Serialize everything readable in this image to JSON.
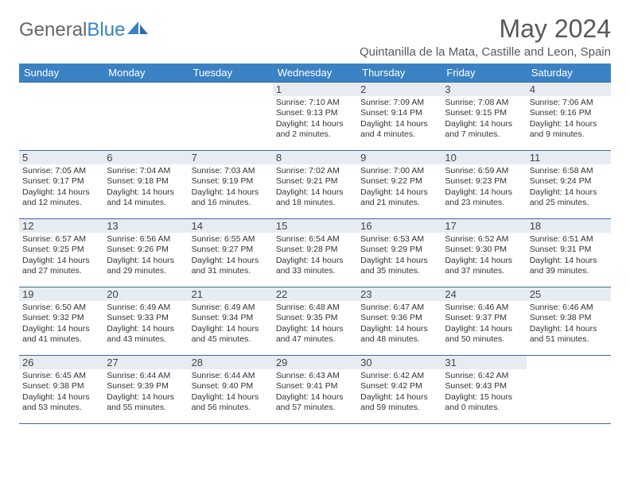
{
  "brand": {
    "part1": "General",
    "part2": "Blue"
  },
  "title": "May 2024",
  "location": "Quintanilla de la Mata, Castille and Leon, Spain",
  "colors": {
    "header_bg": "#3b82c4",
    "header_text": "#ffffff",
    "border": "#3b6a9a",
    "daynum_bg": "#e6ecf2",
    "text": "#333333",
    "title_color": "#595959"
  },
  "day_labels": [
    "Sunday",
    "Monday",
    "Tuesday",
    "Wednesday",
    "Thursday",
    "Friday",
    "Saturday"
  ],
  "weeks": [
    [
      null,
      null,
      null,
      {
        "n": "1",
        "sr": "7:10 AM",
        "ss": "9:13 PM",
        "dl": "14 hours and 2 minutes."
      },
      {
        "n": "2",
        "sr": "7:09 AM",
        "ss": "9:14 PM",
        "dl": "14 hours and 4 minutes."
      },
      {
        "n": "3",
        "sr": "7:08 AM",
        "ss": "9:15 PM",
        "dl": "14 hours and 7 minutes."
      },
      {
        "n": "4",
        "sr": "7:06 AM",
        "ss": "9:16 PM",
        "dl": "14 hours and 9 minutes."
      }
    ],
    [
      {
        "n": "5",
        "sr": "7:05 AM",
        "ss": "9:17 PM",
        "dl": "14 hours and 12 minutes."
      },
      {
        "n": "6",
        "sr": "7:04 AM",
        "ss": "9:18 PM",
        "dl": "14 hours and 14 minutes."
      },
      {
        "n": "7",
        "sr": "7:03 AM",
        "ss": "9:19 PM",
        "dl": "14 hours and 16 minutes."
      },
      {
        "n": "8",
        "sr": "7:02 AM",
        "ss": "9:21 PM",
        "dl": "14 hours and 18 minutes."
      },
      {
        "n": "9",
        "sr": "7:00 AM",
        "ss": "9:22 PM",
        "dl": "14 hours and 21 minutes."
      },
      {
        "n": "10",
        "sr": "6:59 AM",
        "ss": "9:23 PM",
        "dl": "14 hours and 23 minutes."
      },
      {
        "n": "11",
        "sr": "6:58 AM",
        "ss": "9:24 PM",
        "dl": "14 hours and 25 minutes."
      }
    ],
    [
      {
        "n": "12",
        "sr": "6:57 AM",
        "ss": "9:25 PM",
        "dl": "14 hours and 27 minutes."
      },
      {
        "n": "13",
        "sr": "6:56 AM",
        "ss": "9:26 PM",
        "dl": "14 hours and 29 minutes."
      },
      {
        "n": "14",
        "sr": "6:55 AM",
        "ss": "9:27 PM",
        "dl": "14 hours and 31 minutes."
      },
      {
        "n": "15",
        "sr": "6:54 AM",
        "ss": "9:28 PM",
        "dl": "14 hours and 33 minutes."
      },
      {
        "n": "16",
        "sr": "6:53 AM",
        "ss": "9:29 PM",
        "dl": "14 hours and 35 minutes."
      },
      {
        "n": "17",
        "sr": "6:52 AM",
        "ss": "9:30 PM",
        "dl": "14 hours and 37 minutes."
      },
      {
        "n": "18",
        "sr": "6:51 AM",
        "ss": "9:31 PM",
        "dl": "14 hours and 39 minutes."
      }
    ],
    [
      {
        "n": "19",
        "sr": "6:50 AM",
        "ss": "9:32 PM",
        "dl": "14 hours and 41 minutes."
      },
      {
        "n": "20",
        "sr": "6:49 AM",
        "ss": "9:33 PM",
        "dl": "14 hours and 43 minutes."
      },
      {
        "n": "21",
        "sr": "6:49 AM",
        "ss": "9:34 PM",
        "dl": "14 hours and 45 minutes."
      },
      {
        "n": "22",
        "sr": "6:48 AM",
        "ss": "9:35 PM",
        "dl": "14 hours and 47 minutes."
      },
      {
        "n": "23",
        "sr": "6:47 AM",
        "ss": "9:36 PM",
        "dl": "14 hours and 48 minutes."
      },
      {
        "n": "24",
        "sr": "6:46 AM",
        "ss": "9:37 PM",
        "dl": "14 hours and 50 minutes."
      },
      {
        "n": "25",
        "sr": "6:46 AM",
        "ss": "9:38 PM",
        "dl": "14 hours and 51 minutes."
      }
    ],
    [
      {
        "n": "26",
        "sr": "6:45 AM",
        "ss": "9:38 PM",
        "dl": "14 hours and 53 minutes."
      },
      {
        "n": "27",
        "sr": "6:44 AM",
        "ss": "9:39 PM",
        "dl": "14 hours and 55 minutes."
      },
      {
        "n": "28",
        "sr": "6:44 AM",
        "ss": "9:40 PM",
        "dl": "14 hours and 56 minutes."
      },
      {
        "n": "29",
        "sr": "6:43 AM",
        "ss": "9:41 PM",
        "dl": "14 hours and 57 minutes."
      },
      {
        "n": "30",
        "sr": "6:42 AM",
        "ss": "9:42 PM",
        "dl": "14 hours and 59 minutes."
      },
      {
        "n": "31",
        "sr": "6:42 AM",
        "ss": "9:43 PM",
        "dl": "15 hours and 0 minutes."
      },
      null
    ]
  ],
  "labels": {
    "sunrise": "Sunrise: ",
    "sunset": "Sunset: ",
    "daylight": "Daylight: "
  }
}
